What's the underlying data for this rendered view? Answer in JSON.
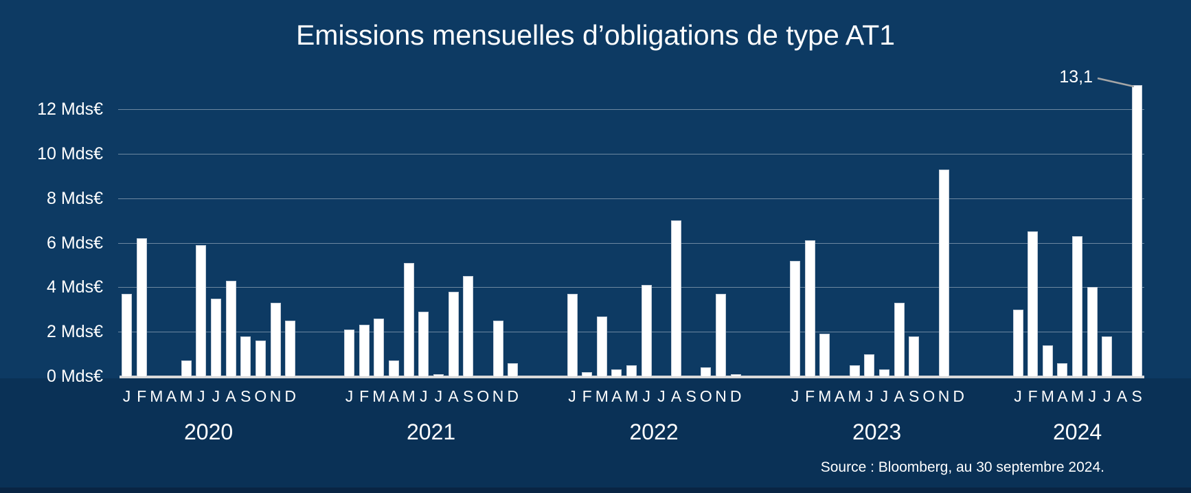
{
  "title": "Emissions mensuelles d’obligations de type AT1",
  "source_note": "Source : Bloomberg, au 30 septembre 2024.",
  "colors": {
    "background": "#0d3a63",
    "background_lower_band": "#0a3156",
    "footer_bar": "#092544",
    "bar_fill": "#ffffff",
    "bar_border": "#c6cfda",
    "gridline": "rgba(255,255,255,0.40)",
    "axis_line": "#d9d9d9",
    "text": "#ffffff",
    "callout_line": "#a6a6a6"
  },
  "chart_data": {
    "type": "bar",
    "title": "Emissions mensuelles d’obligations de type AT1",
    "unit": "Mds€",
    "xlabel": "",
    "ylabel": "",
    "ylim": [
      0,
      13.5
    ],
    "grid": true,
    "legend": "none",
    "y_ticks": [
      {
        "value": 0,
        "label": "0 Mds€"
      },
      {
        "value": 2,
        "label": "2 Mds€"
      },
      {
        "value": 4,
        "label": "4 Mds€"
      },
      {
        "value": 6,
        "label": "6 Mds€"
      },
      {
        "value": 8,
        "label": "8 Mds€"
      },
      {
        "value": 10,
        "label": "10 Mds€"
      },
      {
        "value": 12,
        "label": "12 Mds€"
      }
    ],
    "series_by_year": [
      {
        "year": "2020",
        "month_labels": [
          "J",
          "F",
          "M",
          "A",
          "M",
          "J",
          "J",
          "A",
          "S",
          "O",
          "N",
          "D"
        ],
        "values": [
          3.7,
          6.2,
          0,
          0,
          0.7,
          5.9,
          3.5,
          4.3,
          1.8,
          1.6,
          3.3,
          2.5
        ]
      },
      {
        "year": "2021",
        "month_labels": [
          "J",
          "F",
          "M",
          "A",
          "M",
          "J",
          "J",
          "A",
          "S",
          "O",
          "N",
          "D"
        ],
        "values": [
          2.1,
          2.3,
          2.6,
          0.7,
          5.1,
          2.9,
          0.1,
          3.8,
          4.5,
          0,
          2.5,
          0.6
        ]
      },
      {
        "year": "2022",
        "month_labels": [
          "J",
          "F",
          "M",
          "A",
          "M",
          "J",
          "J",
          "A",
          "S",
          "O",
          "N",
          "D"
        ],
        "values": [
          3.7,
          0.2,
          2.7,
          0.3,
          0.5,
          4.1,
          0,
          7.0,
          0,
          0.4,
          3.7,
          0.1
        ]
      },
      {
        "year": "2023",
        "month_labels": [
          "J",
          "F",
          "M",
          "A",
          "M",
          "J",
          "J",
          "A",
          "S",
          "O",
          "N",
          "D"
        ],
        "values": [
          5.2,
          6.1,
          1.9,
          0,
          0.5,
          1.0,
          0.3,
          3.3,
          1.8,
          0,
          9.3,
          0
        ]
      },
      {
        "year": "2024",
        "month_labels": [
          "J",
          "F",
          "M",
          "A",
          "M",
          "J",
          "J",
          "A",
          "S"
        ],
        "values": [
          3.0,
          6.5,
          1.4,
          0.6,
          6.3,
          4.0,
          1.8,
          0,
          13.1
        ]
      }
    ],
    "annotation": {
      "label": "13,1",
      "value": 13.1,
      "target_year": "2024",
      "target_month": "S"
    }
  }
}
